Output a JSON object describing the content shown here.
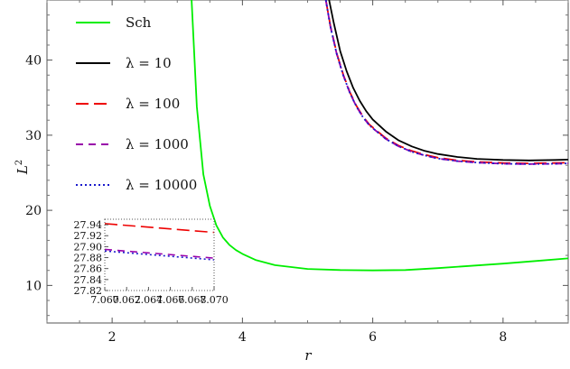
{
  "chart_data": {
    "type": "line",
    "xlabel": "r",
    "ylabel": "L",
    "ylabel_superscript": "2",
    "xlim": [
      1.0,
      9.0
    ],
    "ylim": [
      5.0,
      48.0
    ],
    "xticks": [
      2,
      4,
      6,
      8
    ],
    "xtick_labels": [
      "2",
      "4",
      "6",
      "8"
    ],
    "yticks": [
      10,
      20,
      30,
      40
    ],
    "ytick_labels": [
      "10",
      "20",
      "30",
      "40"
    ],
    "grid": false,
    "legend_position": "top-left",
    "series": [
      {
        "name": "Sch",
        "color": "#00ee00",
        "dash": "solid",
        "x": [
          3.22,
          3.3,
          3.4,
          3.5,
          3.6,
          3.7,
          3.8,
          3.9,
          4.0,
          4.2,
          4.5,
          5.0,
          5.5,
          6.0,
          6.5,
          7.0,
          7.5,
          8.0,
          8.5,
          9.0
        ],
        "y": [
          48.0,
          33.8,
          24.8,
          20.6,
          18.0,
          16.4,
          15.4,
          14.7,
          14.2,
          13.4,
          12.7,
          12.2,
          12.05,
          12.0,
          12.05,
          12.3,
          12.6,
          12.9,
          13.25,
          13.6
        ]
      },
      {
        "name": "λ = 10",
        "color": "#000000",
        "dash": "solid",
        "x": [
          5.33,
          5.4,
          5.5,
          5.6,
          5.7,
          5.8,
          5.9,
          6.0,
          6.2,
          6.4,
          6.6,
          6.8,
          7.0,
          7.3,
          7.6,
          8.0,
          8.4,
          8.8,
          9.0
        ],
        "y": [
          48.0,
          45.0,
          41.2,
          38.5,
          36.3,
          34.6,
          33.2,
          32.1,
          30.5,
          29.3,
          28.5,
          27.9,
          27.5,
          27.1,
          26.85,
          26.7,
          26.65,
          26.7,
          26.75
        ]
      },
      {
        "name": "λ = 100",
        "color": "#ee0000",
        "dash": "long",
        "x": [
          5.28,
          5.35,
          5.45,
          5.55,
          5.65,
          5.75,
          5.85,
          5.95,
          6.2,
          6.4,
          6.6,
          6.8,
          7.0,
          7.3,
          7.6,
          8.0,
          8.4,
          8.8,
          9.0
        ],
        "y": [
          48.0,
          44.6,
          40.8,
          38.0,
          35.7,
          33.9,
          32.5,
          31.4,
          29.6,
          28.6,
          27.9,
          27.4,
          27.0,
          26.65,
          26.45,
          26.3,
          26.25,
          26.3,
          26.35
        ]
      },
      {
        "name": "λ = 1000",
        "color": "#9900aa",
        "dash": "medium",
        "x": [
          5.28,
          5.35,
          5.45,
          5.55,
          5.65,
          5.75,
          5.85,
          5.95,
          6.2,
          6.4,
          6.6,
          6.8,
          7.0,
          7.3,
          7.6,
          8.0,
          8.4,
          8.8,
          9.0
        ],
        "y": [
          48.0,
          44.5,
          40.7,
          37.9,
          35.6,
          33.8,
          32.4,
          31.3,
          29.5,
          28.5,
          27.8,
          27.3,
          26.9,
          26.55,
          26.35,
          26.2,
          26.15,
          26.2,
          26.25
        ]
      },
      {
        "name": "λ = 10000",
        "color": "#1a1acc",
        "dash": "dotted",
        "x": [
          5.28,
          5.35,
          5.45,
          5.55,
          5.65,
          5.75,
          5.85,
          5.95,
          6.2,
          6.4,
          6.6,
          6.8,
          7.0,
          7.3,
          7.6,
          8.0,
          8.4,
          8.8,
          9.0
        ],
        "y": [
          48.0,
          44.5,
          40.7,
          37.9,
          35.6,
          33.8,
          32.4,
          31.3,
          29.5,
          28.5,
          27.8,
          27.3,
          26.9,
          26.55,
          26.35,
          26.2,
          26.15,
          26.2,
          26.25
        ]
      }
    ],
    "inset": {
      "xlim": [
        7.06,
        7.07
      ],
      "ylim": [
        27.82,
        27.95
      ],
      "xticks": [
        7.06,
        7.062,
        7.064,
        7.066,
        7.068,
        7.07
      ],
      "xtick_labels": [
        "7.060",
        "7.062",
        "7.064",
        "7.066",
        "7.068",
        "7.070"
      ],
      "yticks": [
        27.82,
        27.84,
        27.86,
        27.88,
        27.9,
        27.92,
        27.94
      ],
      "ytick_labels": [
        "27.82",
        "27.84",
        "27.86",
        "27.88",
        "27.90",
        "27.92",
        "27.94"
      ],
      "series": [
        {
          "name": "λ = 100",
          "color": "#ee0000",
          "dash": "long",
          "x": [
            7.06,
            7.07
          ],
          "y": [
            27.942,
            27.926
          ]
        },
        {
          "name": "λ = 1000",
          "color": "#9900aa",
          "dash": "medium",
          "x": [
            7.06,
            7.07
          ],
          "y": [
            27.895,
            27.879
          ]
        },
        {
          "name": "λ = 10000",
          "color": "#1a1acc",
          "dash": "dotted",
          "x": [
            7.06,
            7.07
          ],
          "y": [
            27.892,
            27.876
          ]
        }
      ]
    }
  }
}
